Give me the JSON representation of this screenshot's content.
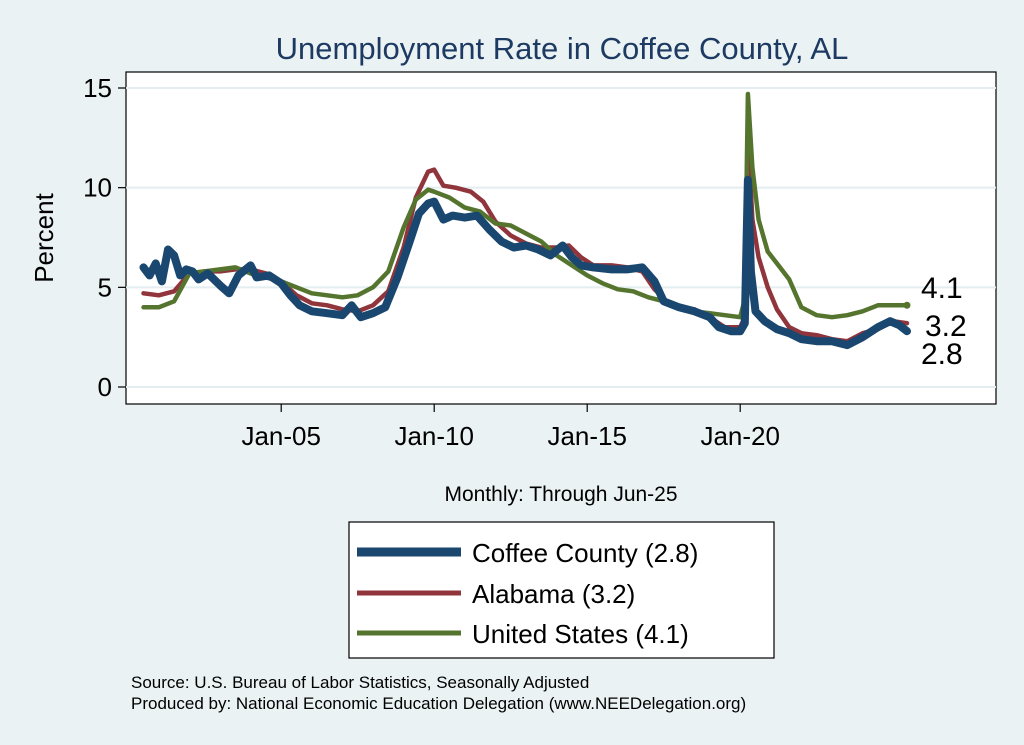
{
  "chart_data": {
    "type": "line",
    "title": "Unemployment Rate in Coffee  County, AL",
    "ylabel": "Percent",
    "xlabel": "Monthly: Through Jun-25",
    "ylim": [
      0,
      15
    ],
    "yticks": [
      0,
      5,
      10,
      15
    ],
    "xlim": [
      2000.0,
      2028.4
    ],
    "xticks": [
      {
        "label": "Jan-05",
        "value": 2005.0
      },
      {
        "label": "Jan-10",
        "value": 2010.0
      },
      {
        "label": "Jan-15",
        "value": 2015.0
      },
      {
        "label": "Jan-20",
        "value": 2020.0
      }
    ],
    "grid": true,
    "legend_position": "bottom",
    "series": [
      {
        "name": "Coffee  County",
        "legend_label": "Coffee  County (2.8)",
        "end_label": "2.8",
        "color": "#1a476f",
        "points": [
          [
            2000.5,
            6.0
          ],
          [
            2000.7,
            5.6
          ],
          [
            2000.9,
            6.2
          ],
          [
            2001.1,
            5.3
          ],
          [
            2001.3,
            6.9
          ],
          [
            2001.5,
            6.6
          ],
          [
            2001.7,
            5.6
          ],
          [
            2001.9,
            5.9
          ],
          [
            2002.1,
            5.8
          ],
          [
            2002.3,
            5.4
          ],
          [
            2002.6,
            5.7
          ],
          [
            2003.0,
            5.1
          ],
          [
            2003.3,
            4.7
          ],
          [
            2003.6,
            5.6
          ],
          [
            2004.0,
            6.1
          ],
          [
            2004.2,
            5.5
          ],
          [
            2004.6,
            5.6
          ],
          [
            2005.0,
            5.2
          ],
          [
            2005.3,
            4.6
          ],
          [
            2005.6,
            4.1
          ],
          [
            2006.0,
            3.8
          ],
          [
            2006.5,
            3.7
          ],
          [
            2007.0,
            3.6
          ],
          [
            2007.3,
            4.1
          ],
          [
            2007.6,
            3.5
          ],
          [
            2008.0,
            3.7
          ],
          [
            2008.4,
            4.0
          ],
          [
            2008.8,
            5.5
          ],
          [
            2009.2,
            7.3
          ],
          [
            2009.5,
            8.7
          ],
          [
            2009.8,
            9.2
          ],
          [
            2010.0,
            9.3
          ],
          [
            2010.3,
            8.4
          ],
          [
            2010.6,
            8.6
          ],
          [
            2011.0,
            8.5
          ],
          [
            2011.4,
            8.6
          ],
          [
            2011.8,
            7.9
          ],
          [
            2012.2,
            7.3
          ],
          [
            2012.6,
            7.0
          ],
          [
            2013.0,
            7.1
          ],
          [
            2013.4,
            6.9
          ],
          [
            2013.8,
            6.6
          ],
          [
            2014.2,
            7.1
          ],
          [
            2014.5,
            6.5
          ],
          [
            2014.8,
            6.1
          ],
          [
            2015.2,
            6.0
          ],
          [
            2015.8,
            5.9
          ],
          [
            2016.3,
            5.9
          ],
          [
            2016.8,
            6.0
          ],
          [
            2017.2,
            5.3
          ],
          [
            2017.5,
            4.3
          ],
          [
            2018.0,
            4.0
          ],
          [
            2018.5,
            3.8
          ],
          [
            2019.0,
            3.5
          ],
          [
            2019.3,
            3.0
          ],
          [
            2019.7,
            2.8
          ],
          [
            2020.0,
            2.8
          ],
          [
            2020.15,
            3.2
          ],
          [
            2020.25,
            10.4
          ],
          [
            2020.35,
            5.8
          ],
          [
            2020.5,
            3.8
          ],
          [
            2020.8,
            3.3
          ],
          [
            2021.2,
            2.9
          ],
          [
            2021.6,
            2.7
          ],
          [
            2022.0,
            2.4
          ],
          [
            2022.5,
            2.3
          ],
          [
            2023.0,
            2.3
          ],
          [
            2023.5,
            2.1
          ],
          [
            2024.0,
            2.5
          ],
          [
            2024.5,
            3.0
          ],
          [
            2024.9,
            3.3
          ],
          [
            2025.2,
            3.1
          ],
          [
            2025.45,
            2.8
          ]
        ]
      },
      {
        "name": "Alabama",
        "legend_label": "Alabama (3.2)",
        "end_label": "3.2",
        "color": "#90353b",
        "points": [
          [
            2000.5,
            4.7
          ],
          [
            2001.0,
            4.6
          ],
          [
            2001.5,
            4.8
          ],
          [
            2002.0,
            5.7
          ],
          [
            2002.5,
            5.8
          ],
          [
            2003.0,
            5.8
          ],
          [
            2003.5,
            5.9
          ],
          [
            2004.0,
            5.9
          ],
          [
            2004.5,
            5.7
          ],
          [
            2005.0,
            5.3
          ],
          [
            2005.5,
            4.6
          ],
          [
            2006.0,
            4.2
          ],
          [
            2006.5,
            4.1
          ],
          [
            2007.0,
            3.9
          ],
          [
            2007.5,
            3.8
          ],
          [
            2008.0,
            4.1
          ],
          [
            2008.5,
            4.8
          ],
          [
            2009.0,
            7.0
          ],
          [
            2009.4,
            9.5
          ],
          [
            2009.8,
            10.8
          ],
          [
            2010.0,
            10.9
          ],
          [
            2010.3,
            10.1
          ],
          [
            2010.7,
            10.0
          ],
          [
            2011.2,
            9.8
          ],
          [
            2011.6,
            9.3
          ],
          [
            2012.0,
            8.3
          ],
          [
            2012.5,
            7.6
          ],
          [
            2013.0,
            7.2
          ],
          [
            2013.5,
            7.0
          ],
          [
            2014.0,
            7.0
          ],
          [
            2014.4,
            7.1
          ],
          [
            2014.8,
            6.5
          ],
          [
            2015.2,
            6.1
          ],
          [
            2015.8,
            6.1
          ],
          [
            2016.3,
            6.0
          ],
          [
            2016.8,
            5.8
          ],
          [
            2017.2,
            4.9
          ],
          [
            2017.6,
            4.3
          ],
          [
            2018.0,
            4.0
          ],
          [
            2018.5,
            3.9
          ],
          [
            2019.0,
            3.5
          ],
          [
            2019.5,
            3.0
          ],
          [
            2020.0,
            3.0
          ],
          [
            2020.15,
            3.5
          ],
          [
            2020.25,
            12.6
          ],
          [
            2020.4,
            8.4
          ],
          [
            2020.6,
            6.5
          ],
          [
            2020.9,
            5.0
          ],
          [
            2021.2,
            3.9
          ],
          [
            2021.6,
            3.0
          ],
          [
            2022.0,
            2.7
          ],
          [
            2022.5,
            2.6
          ],
          [
            2023.0,
            2.4
          ],
          [
            2023.5,
            2.3
          ],
          [
            2024.0,
            2.7
          ],
          [
            2024.5,
            2.9
          ],
          [
            2025.0,
            3.3
          ],
          [
            2025.45,
            3.2
          ]
        ]
      },
      {
        "name": "United States",
        "legend_label": "United States (4.1)",
        "end_label": "4.1",
        "color": "#55752f",
        "points": [
          [
            2000.5,
            4.0
          ],
          [
            2001.0,
            4.0
          ],
          [
            2001.5,
            4.3
          ],
          [
            2002.0,
            5.7
          ],
          [
            2002.5,
            5.8
          ],
          [
            2003.0,
            5.9
          ],
          [
            2003.5,
            6.0
          ],
          [
            2004.0,
            5.7
          ],
          [
            2004.5,
            5.5
          ],
          [
            2005.0,
            5.3
          ],
          [
            2005.5,
            5.0
          ],
          [
            2006.0,
            4.7
          ],
          [
            2006.5,
            4.6
          ],
          [
            2007.0,
            4.5
          ],
          [
            2007.5,
            4.6
          ],
          [
            2008.0,
            5.0
          ],
          [
            2008.5,
            5.8
          ],
          [
            2009.0,
            8.0
          ],
          [
            2009.4,
            9.4
          ],
          [
            2009.8,
            9.9
          ],
          [
            2010.0,
            9.8
          ],
          [
            2010.5,
            9.5
          ],
          [
            2011.0,
            9.0
          ],
          [
            2011.5,
            8.8
          ],
          [
            2012.0,
            8.2
          ],
          [
            2012.5,
            8.1
          ],
          [
            2013.0,
            7.7
          ],
          [
            2013.5,
            7.3
          ],
          [
            2014.0,
            6.6
          ],
          [
            2014.5,
            6.1
          ],
          [
            2015.0,
            5.6
          ],
          [
            2015.5,
            5.2
          ],
          [
            2016.0,
            4.9
          ],
          [
            2016.5,
            4.8
          ],
          [
            2017.0,
            4.5
          ],
          [
            2017.5,
            4.3
          ],
          [
            2018.0,
            4.0
          ],
          [
            2018.5,
            3.8
          ],
          [
            2019.0,
            3.7
          ],
          [
            2019.5,
            3.6
          ],
          [
            2020.0,
            3.5
          ],
          [
            2020.15,
            4.4
          ],
          [
            2020.25,
            14.7
          ],
          [
            2020.4,
            11.0
          ],
          [
            2020.6,
            8.4
          ],
          [
            2020.9,
            6.8
          ],
          [
            2021.3,
            6.0
          ],
          [
            2021.6,
            5.4
          ],
          [
            2022.0,
            4.0
          ],
          [
            2022.5,
            3.6
          ],
          [
            2023.0,
            3.5
          ],
          [
            2023.5,
            3.6
          ],
          [
            2024.0,
            3.8
          ],
          [
            2024.5,
            4.1
          ],
          [
            2025.0,
            4.1
          ],
          [
            2025.45,
            4.1
          ]
        ]
      }
    ]
  },
  "footer": {
    "source": "Source: U.S. Bureau of Labor Statistics, Seasonally Adjusted",
    "produced": "Produced by: National Economic Education Delegation (www.NEEDelegation.org)"
  }
}
